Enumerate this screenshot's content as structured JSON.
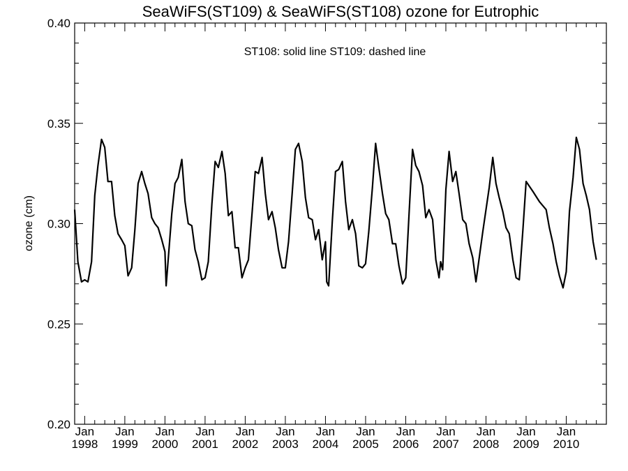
{
  "chart_data": {
    "type": "line",
    "title": "SeaWiFS(ST109) & SeaWiFS(ST108)  ozone for Eutrophic",
    "annotation": "ST108: solid line   ST109: dashed line",
    "ylabel": "ozone (cm)",
    "xlabel": "",
    "ylim": [
      0.2,
      0.4
    ],
    "xlim": [
      1997.75,
      2011.0
    ],
    "y_ticks": [
      "0.20",
      "0.25",
      "0.30",
      "0.35",
      "0.40"
    ],
    "x_ticks": [
      {
        "month": "Jan",
        "year": "1998",
        "x": 1998
      },
      {
        "month": "Jan",
        "year": "1999",
        "x": 1999
      },
      {
        "month": "Jan",
        "year": "2000",
        "x": 2000
      },
      {
        "month": "Jan",
        "year": "2001",
        "x": 2001
      },
      {
        "month": "Jan",
        "year": "2002",
        "x": 2002
      },
      {
        "month": "Jan",
        "year": "2003",
        "x": 2003
      },
      {
        "month": "Jan",
        "year": "2004",
        "x": 2004
      },
      {
        "month": "Jan",
        "year": "2005",
        "x": 2005
      },
      {
        "month": "Jan",
        "year": "2006",
        "x": 2006
      },
      {
        "month": "Jan",
        "year": "2007",
        "x": 2007
      },
      {
        "month": "Jan",
        "year": "2008",
        "x": 2008
      },
      {
        "month": "Jan",
        "year": "2009",
        "x": 2009
      },
      {
        "month": "Jan",
        "year": "2010",
        "x": 2010
      }
    ],
    "series": [
      {
        "name": "ST108",
        "style": "solid",
        "color": "#000000",
        "points": [
          [
            1997.75,
            0.307
          ],
          [
            1997.83,
            0.281
          ],
          [
            1997.92,
            0.271
          ],
          [
            1998.0,
            0.272
          ],
          [
            1998.08,
            0.271
          ],
          [
            1998.17,
            0.281
          ],
          [
            1998.25,
            0.314
          ],
          [
            1998.33,
            0.329
          ],
          [
            1998.42,
            0.342
          ],
          [
            1998.5,
            0.338
          ],
          [
            1998.58,
            0.321
          ],
          [
            1998.67,
            0.321
          ],
          [
            1998.75,
            0.304
          ],
          [
            1998.83,
            0.295
          ],
          [
            1998.92,
            0.292
          ],
          [
            1999.0,
            0.289
          ],
          [
            1999.08,
            0.274
          ],
          [
            1999.17,
            0.278
          ],
          [
            1999.25,
            0.297
          ],
          [
            1999.33,
            0.32
          ],
          [
            1999.42,
            0.326
          ],
          [
            1999.5,
            0.32
          ],
          [
            1999.58,
            0.315
          ],
          [
            1999.67,
            0.303
          ],
          [
            1999.75,
            0.3
          ],
          [
            1999.83,
            0.298
          ],
          [
            1999.92,
            0.292
          ],
          [
            2000.0,
            0.286
          ],
          [
            2000.03,
            0.269
          ],
          [
            2000.17,
            0.305
          ],
          [
            2000.25,
            0.32
          ],
          [
            2000.33,
            0.323
          ],
          [
            2000.42,
            0.332
          ],
          [
            2000.5,
            0.311
          ],
          [
            2000.58,
            0.3
          ],
          [
            2000.67,
            0.299
          ],
          [
            2000.75,
            0.287
          ],
          [
            2000.83,
            0.281
          ],
          [
            2000.92,
            0.272
          ],
          [
            2001.0,
            0.273
          ],
          [
            2001.08,
            0.281
          ],
          [
            2001.17,
            0.31
          ],
          [
            2001.25,
            0.331
          ],
          [
            2001.33,
            0.328
          ],
          [
            2001.42,
            0.336
          ],
          [
            2001.5,
            0.325
          ],
          [
            2001.58,
            0.304
          ],
          [
            2001.67,
            0.306
          ],
          [
            2001.75,
            0.288
          ],
          [
            2001.83,
            0.288
          ],
          [
            2001.92,
            0.273
          ],
          [
            2002.0,
            0.278
          ],
          [
            2002.08,
            0.282
          ],
          [
            2002.17,
            0.305
          ],
          [
            2002.25,
            0.326
          ],
          [
            2002.33,
            0.325
          ],
          [
            2002.42,
            0.333
          ],
          [
            2002.5,
            0.315
          ],
          [
            2002.58,
            0.302
          ],
          [
            2002.67,
            0.306
          ],
          [
            2002.75,
            0.298
          ],
          [
            2002.83,
            0.287
          ],
          [
            2002.92,
            0.278
          ],
          [
            2003.0,
            0.278
          ],
          [
            2003.08,
            0.291
          ],
          [
            2003.17,
            0.315
          ],
          [
            2003.25,
            0.337
          ],
          [
            2003.33,
            0.34
          ],
          [
            2003.42,
            0.331
          ],
          [
            2003.5,
            0.313
          ],
          [
            2003.58,
            0.303
          ],
          [
            2003.67,
            0.302
          ],
          [
            2003.75,
            0.292
          ],
          [
            2003.83,
            0.297
          ],
          [
            2003.92,
            0.282
          ],
          [
            2004.0,
            0.291
          ],
          [
            2004.03,
            0.271
          ],
          [
            2004.08,
            0.269
          ],
          [
            2004.17,
            0.301
          ],
          [
            2004.25,
            0.326
          ],
          [
            2004.33,
            0.327
          ],
          [
            2004.42,
            0.331
          ],
          [
            2004.5,
            0.311
          ],
          [
            2004.58,
            0.297
          ],
          [
            2004.67,
            0.302
          ],
          [
            2004.75,
            0.295
          ],
          [
            2004.83,
            0.279
          ],
          [
            2004.92,
            0.278
          ],
          [
            2005.0,
            0.28
          ],
          [
            2005.08,
            0.296
          ],
          [
            2005.17,
            0.318
          ],
          [
            2005.25,
            0.34
          ],
          [
            2005.33,
            0.328
          ],
          [
            2005.42,
            0.315
          ],
          [
            2005.5,
            0.305
          ],
          [
            2005.58,
            0.302
          ],
          [
            2005.67,
            0.29
          ],
          [
            2005.75,
            0.29
          ],
          [
            2005.83,
            0.279
          ],
          [
            2005.92,
            0.27
          ],
          [
            2006.0,
            0.273
          ],
          [
            2006.08,
            0.304
          ],
          [
            2006.17,
            0.337
          ],
          [
            2006.25,
            0.329
          ],
          [
            2006.33,
            0.326
          ],
          [
            2006.42,
            0.319
          ],
          [
            2006.5,
            0.303
          ],
          [
            2006.58,
            0.307
          ],
          [
            2006.67,
            0.302
          ],
          [
            2006.75,
            0.282
          ],
          [
            2006.83,
            0.273
          ],
          [
            2006.87,
            0.281
          ],
          [
            2006.92,
            0.277
          ],
          [
            2007.0,
            0.317
          ],
          [
            2007.08,
            0.336
          ],
          [
            2007.17,
            0.321
          ],
          [
            2007.25,
            0.326
          ],
          [
            2007.33,
            0.315
          ],
          [
            2007.42,
            0.302
          ],
          [
            2007.5,
            0.3
          ],
          [
            2007.58,
            0.29
          ],
          [
            2007.67,
            0.283
          ],
          [
            2007.75,
            0.271
          ],
          [
            2007.92,
            0.296
          ],
          [
            2008.08,
            0.318
          ],
          [
            2008.17,
            0.333
          ],
          [
            2008.25,
            0.32
          ],
          [
            2008.33,
            0.313
          ],
          [
            2008.42,
            0.306
          ],
          [
            2008.5,
            0.298
          ],
          [
            2008.58,
            0.295
          ],
          [
            2008.67,
            0.282
          ],
          [
            2008.75,
            0.273
          ],
          [
            2008.83,
            0.272
          ],
          [
            2008.92,
            0.297
          ],
          [
            2009.0,
            0.321
          ],
          [
            2009.17,
            0.316
          ],
          [
            2009.33,
            0.311
          ],
          [
            2009.5,
            0.307
          ],
          [
            2009.58,
            0.298
          ],
          [
            2009.67,
            0.29
          ],
          [
            2009.75,
            0.281
          ],
          [
            2009.83,
            0.274
          ],
          [
            2009.92,
            0.268
          ],
          [
            2010.0,
            0.276
          ],
          [
            2010.08,
            0.306
          ],
          [
            2010.17,
            0.323
          ],
          [
            2010.25,
            0.343
          ],
          [
            2010.33,
            0.337
          ],
          [
            2010.42,
            0.32
          ],
          [
            2010.5,
            0.314
          ],
          [
            2010.58,
            0.307
          ],
          [
            2010.67,
            0.291
          ],
          [
            2010.75,
            0.282
          ]
        ]
      }
    ]
  }
}
